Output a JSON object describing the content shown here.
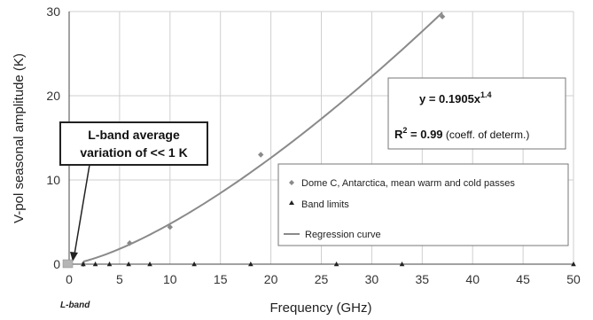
{
  "chart_data": {
    "type": "scatter",
    "xlabel": "Frequency (GHz)",
    "ylabel": "V-pol seasonal amplitude (K)",
    "xlim": [
      0,
      50
    ],
    "ylim": [
      0,
      30
    ],
    "x_ticks": [
      0,
      5,
      10,
      15,
      20,
      25,
      30,
      35,
      40,
      45,
      50
    ],
    "y_ticks": [
      0,
      10,
      20,
      30
    ],
    "grid": true,
    "series": [
      {
        "name": "Dome C, Antarctica, mean warm and cold passes",
        "marker": "diamond",
        "color": "#8a8a8a",
        "points": [
          [
            1.4,
            0.0
          ],
          [
            6.0,
            2.5
          ],
          [
            10.0,
            4.4
          ],
          [
            19.0,
            13.0
          ],
          [
            37.0,
            29.4
          ]
        ]
      },
      {
        "name": "Band limits",
        "marker": "triangle",
        "color": "#222222",
        "points": [
          [
            1.4,
            0
          ],
          [
            2.6,
            0
          ],
          [
            4.0,
            0
          ],
          [
            5.9,
            0
          ],
          [
            8.0,
            0
          ],
          [
            12.4,
            0
          ],
          [
            18.0,
            0
          ],
          [
            26.5,
            0
          ],
          [
            33.0,
            0
          ],
          [
            50.0,
            0
          ]
        ]
      },
      {
        "name": "Regression curve",
        "type": "line",
        "color": "#8a8a8a",
        "equation_coefficient": 0.1905,
        "equation_exponent": 1.4,
        "x_range": [
          1.4,
          37.0
        ]
      }
    ],
    "legend_position": "lower-right",
    "annotations": {
      "equation_lhs": "y = 0.1905x",
      "equation_exp": "1.4",
      "r2_label": "R",
      "r2_exp": "2",
      "r2_value": " = 0.99",
      "r2_note": " (coeff. of determ.)",
      "callout_line1": "L-band average",
      "callout_line2": "variation of << 1 K",
      "lband_label": "L-band"
    }
  }
}
